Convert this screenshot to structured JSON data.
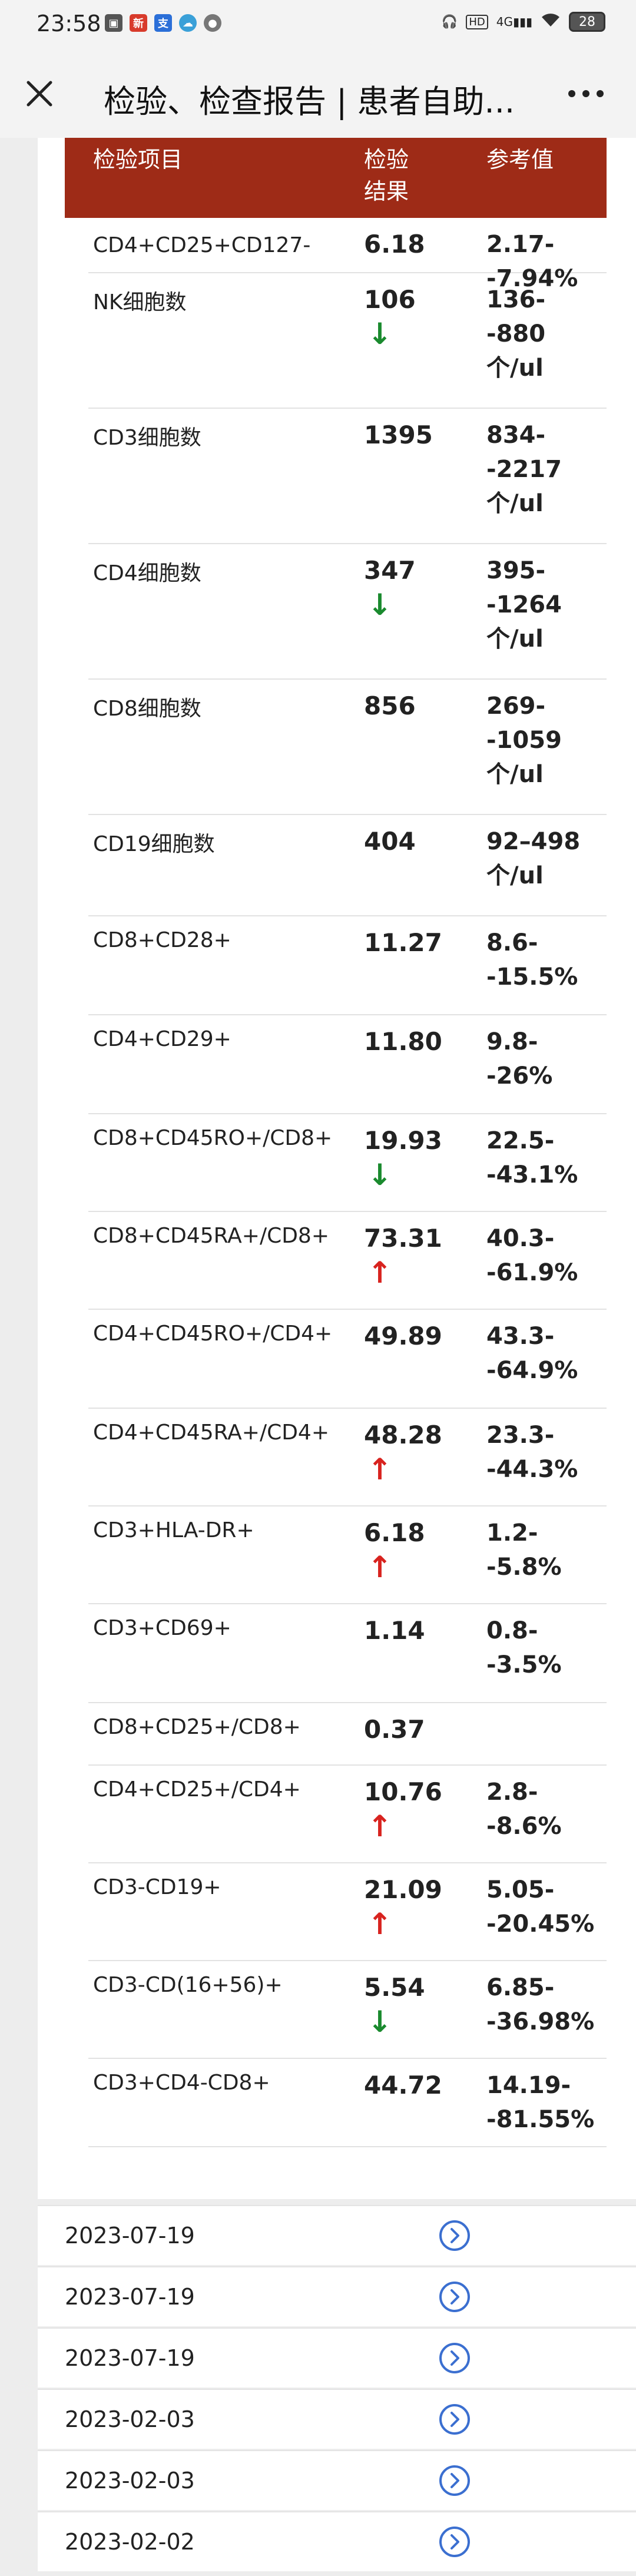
{
  "status_bar": {
    "time": "23:58",
    "network": "4G",
    "battery": "28"
  },
  "nav": {
    "title": "检验、检查报告 | 患者自助..."
  },
  "table": {
    "headers": [
      "检验项目",
      "检验\n结果",
      "参考值"
    ],
    "rows": [
      {
        "name": "CD4+CD25+CD127-",
        "value": "6.18",
        "flag": "",
        "ref": "2.17-\n-7.94%"
      },
      {
        "name": "NK细胞数",
        "value": "106",
        "flag": "down",
        "ref": "136-\n-880\n个/ul"
      },
      {
        "name": "CD3细胞数",
        "value": "1395",
        "flag": "",
        "ref": "834-\n-2217\n个/ul"
      },
      {
        "name": "CD4细胞数",
        "value": "347",
        "flag": "down",
        "ref": "395-\n-1264\n个/ul"
      },
      {
        "name": "CD8细胞数",
        "value": "856",
        "flag": "",
        "ref": "269-\n-1059\n个/ul"
      },
      {
        "name": "CD19细胞数",
        "value": "404",
        "flag": "",
        "ref": "92–498\n个/ul"
      },
      {
        "name": "CD8+CD28+",
        "value": "11.27",
        "flag": "",
        "ref": "8.6-\n-15.5%"
      },
      {
        "name": "CD4+CD29+",
        "value": "11.80",
        "flag": "",
        "ref": "9.8-\n-26%"
      },
      {
        "name": "CD8+CD45RO+/CD8+",
        "value": "19.93",
        "flag": "down",
        "ref": "22.5-\n-43.1%"
      },
      {
        "name": "CD8+CD45RA+/CD8+",
        "value": "73.31",
        "flag": "up",
        "ref": "40.3-\n-61.9%"
      },
      {
        "name": "CD4+CD45RO+/CD4+",
        "value": "49.89",
        "flag": "",
        "ref": "43.3-\n-64.9%"
      },
      {
        "name": "CD4+CD45RA+/CD4+",
        "value": "48.28",
        "flag": "up",
        "ref": "23.3-\n-44.3%"
      },
      {
        "name": "CD3+HLA-DR+",
        "value": "6.18",
        "flag": "up",
        "ref": "1.2-\n-5.8%"
      },
      {
        "name": "CD3+CD69+",
        "value": "1.14",
        "flag": "",
        "ref": "0.8-\n-3.5%"
      },
      {
        "name": "CD8+CD25+/CD8+",
        "value": "0.37",
        "flag": "",
        "ref": ""
      },
      {
        "name": "CD4+CD25+/CD4+",
        "value": "10.76",
        "flag": "up",
        "ref": "2.8-\n-8.6%"
      },
      {
        "name": "CD3-CD19+",
        "value": "21.09",
        "flag": "up",
        "ref": "5.05-\n-20.45%"
      },
      {
        "name": "CD3-CD(16+56)+",
        "value": "5.54",
        "flag": "down",
        "ref": "6.85-\n-36.98%"
      },
      {
        "name": "CD3+CD4-CD8+",
        "value": "44.72",
        "flag": "",
        "ref": "14.19-\n-81.55%"
      }
    ]
  },
  "arrows": {
    "up": "↑",
    "down": "↓"
  },
  "reports": [
    {
      "date": "2023-07-19"
    },
    {
      "date": "2023-07-19"
    },
    {
      "date": "2023-07-19"
    },
    {
      "date": "2023-02-03"
    },
    {
      "date": "2023-02-03"
    },
    {
      "date": "2023-02-02"
    }
  ],
  "colors": {
    "header_bg": "#9e2b17",
    "arrow_up": "#d8231f",
    "arrow_down": "#1a8a2e",
    "link_icon": "#3b6fd0"
  }
}
